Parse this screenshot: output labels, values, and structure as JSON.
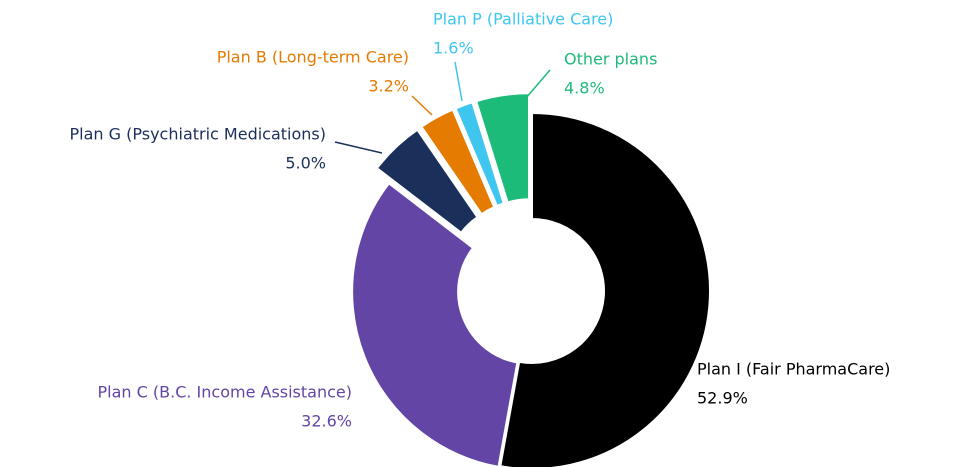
{
  "chart_data": {
    "type": "pie",
    "categories": [
      "Plan I (Fair PharmaCare)",
      "Plan C (B.C. Income Assistance)",
      "Plan G (Psychiatric Medications)",
      "Plan B (Long-term Care)",
      "Plan P (Palliative Care)",
      "Other plans"
    ],
    "values": [
      52.9,
      32.6,
      5.0,
      3.2,
      1.6,
      4.8
    ],
    "value_labels": [
      "52.9%",
      "32.6%",
      "5.0%",
      "3.2%",
      "1.6%",
      "4.8%"
    ],
    "colors": [
      "#000000",
      "#6345a6",
      "#1b2f5b",
      "#e57b00",
      "#3ec6ef",
      "#1dbb7a"
    ]
  }
}
